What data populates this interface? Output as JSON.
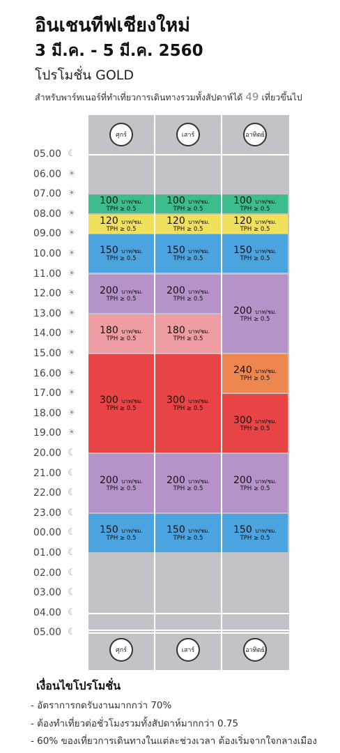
{
  "header": {
    "title": "อินเชนทีฟเชียงใหม่",
    "dates": "3 มี.ค. - 5 มี.ค. 2560",
    "promo": "โปรโมชั่น GOLD",
    "subtitle_pre": "สำหรับพาร์ทเนอร์ที่ทำเที่ยวการเดินทางรวมทั้งสัปดาห์ได้",
    "subtitle_num": "49",
    "subtitle_post": "เที่ยวขึ้นไป"
  },
  "days": [
    "ศุกร์",
    "เสาร์",
    "อาทิตย์"
  ],
  "times": [
    {
      "label": "05.00",
      "icon": "moon-icon"
    },
    {
      "label": "06.00",
      "icon": "sun-icon"
    },
    {
      "label": "07.00",
      "icon": "sun-icon"
    },
    {
      "label": "08.00",
      "icon": "sun-icon"
    },
    {
      "label": "09.00",
      "icon": "sun-icon"
    },
    {
      "label": "10.00",
      "icon": "sun-icon"
    },
    {
      "label": "11.00",
      "icon": "sun-icon"
    },
    {
      "label": "12.00",
      "icon": "sun-icon"
    },
    {
      "label": "13.00",
      "icon": "sun-icon"
    },
    {
      "label": "14.00",
      "icon": "sun-icon"
    },
    {
      "label": "15.00",
      "icon": "sun-icon"
    },
    {
      "label": "16.00",
      "icon": "sun-icon"
    },
    {
      "label": "17.00",
      "icon": "sun-icon"
    },
    {
      "label": "18.00",
      "icon": "sun-icon"
    },
    {
      "label": "19.00",
      "icon": "sun-icon"
    },
    {
      "label": "20.00",
      "icon": "moon-icon"
    },
    {
      "label": "21.00",
      "icon": "moon-icon"
    },
    {
      "label": "22.00",
      "icon": "moon-icon"
    },
    {
      "label": "23.00",
      "icon": "moon-icon"
    },
    {
      "label": "00.00",
      "icon": "moon-icon"
    },
    {
      "label": "01.00",
      "icon": "moon-icon"
    },
    {
      "label": "02.00",
      "icon": "moon-icon"
    },
    {
      "label": "03.00",
      "icon": "moon-icon"
    },
    {
      "label": "04.00",
      "icon": "moon-icon"
    },
    {
      "label": "05.00",
      "icon": "moon-icon"
    }
  ],
  "unit": "บาท/ชม.",
  "tph": "TPH ≥ 0.5",
  "blocks": [
    {
      "day": 0,
      "price": "100",
      "start": 7,
      "end": 8,
      "color": "#3dbd8c"
    },
    {
      "day": 1,
      "price": "100",
      "start": 7,
      "end": 8,
      "color": "#3dbd8c"
    },
    {
      "day": 2,
      "price": "100",
      "start": 7,
      "end": 8,
      "color": "#3dbd8c"
    },
    {
      "day": 0,
      "price": "120",
      "start": 8,
      "end": 9,
      "color": "#f0e05e"
    },
    {
      "day": 1,
      "price": "120",
      "start": 8,
      "end": 9,
      "color": "#f0e05e"
    },
    {
      "day": 2,
      "price": "120",
      "start": 8,
      "end": 9,
      "color": "#f0e05e"
    },
    {
      "day": 0,
      "price": "150",
      "start": 9,
      "end": 11,
      "color": "#4ba3df"
    },
    {
      "day": 1,
      "price": "150",
      "start": 9,
      "end": 11,
      "color": "#4ba3df"
    },
    {
      "day": 2,
      "price": "150",
      "start": 9,
      "end": 11,
      "color": "#4ba3df"
    },
    {
      "day": 0,
      "price": "200",
      "start": 11,
      "end": 13,
      "color": "#b592c8"
    },
    {
      "day": 1,
      "price": "200",
      "start": 11,
      "end": 13,
      "color": "#b592c8"
    },
    {
      "day": 2,
      "price": "200",
      "start": 11,
      "end": 15,
      "color": "#b592c8"
    },
    {
      "day": 0,
      "price": "180",
      "start": 13,
      "end": 15,
      "color": "#ee9da3"
    },
    {
      "day": 1,
      "price": "180",
      "start": 13,
      "end": 15,
      "color": "#ee9da3"
    },
    {
      "day": 0,
      "price": "300",
      "start": 15,
      "end": 20,
      "color": "#e84345"
    },
    {
      "day": 1,
      "price": "300",
      "start": 15,
      "end": 20,
      "color": "#e84345"
    },
    {
      "day": 2,
      "price": "240",
      "start": 15,
      "end": 17,
      "color": "#ee874f"
    },
    {
      "day": 2,
      "price": "300",
      "start": 17,
      "end": 20,
      "color": "#e84345"
    },
    {
      "day": 0,
      "price": "200",
      "start": 20,
      "end": 23,
      "color": "#b592c8"
    },
    {
      "day": 1,
      "price": "200",
      "start": 20,
      "end": 23,
      "color": "#b592c8"
    },
    {
      "day": 2,
      "price": "200",
      "start": 20,
      "end": 23,
      "color": "#b592c8"
    },
    {
      "day": 0,
      "price": "150",
      "start": 23,
      "end": 25,
      "color": "#4ba3df"
    },
    {
      "day": 1,
      "price": "150",
      "start": 23,
      "end": 25,
      "color": "#4ba3df"
    },
    {
      "day": 2,
      "price": "150",
      "start": 23,
      "end": 25,
      "color": "#4ba3df"
    }
  ],
  "conditions": {
    "heading": "เงื่อนไขโปรโมชั่น",
    "items": [
      "- อัตราการกดรับงานมากกว่า 70%",
      "- ต้องทำเที่ยวต่อชั่วโมงรวมทั้งสัปดาห์มากกว่า 0.75",
      "- 60% ของเที่ยวการเดินทางในแต่ละช่วงเวลา ต้องเริ่มจากใจกลางเมือง"
    ]
  }
}
